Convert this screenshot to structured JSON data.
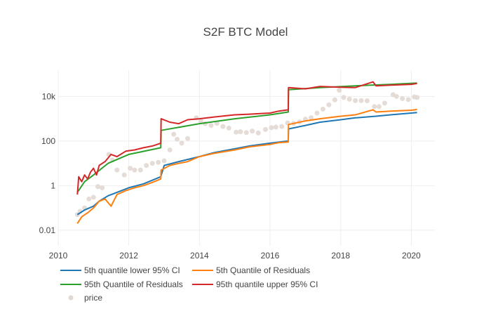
{
  "chart_data": {
    "type": "line",
    "title": "S2F BTC Model",
    "xlabel": "",
    "ylabel": "",
    "x_scale": "time",
    "y_scale": "log",
    "xlim": [
      "2010-01-01",
      "2020-09-01"
    ],
    "ylim": [
      0.002,
      150000
    ],
    "x_ticks": [
      {
        "value": "2010-01-01",
        "label": "2010"
      },
      {
        "value": "2012-01-01",
        "label": "2012"
      },
      {
        "value": "2014-01-01",
        "label": "2014"
      },
      {
        "value": "2016-01-01",
        "label": "2016"
      },
      {
        "value": "2018-01-01",
        "label": "2018"
      },
      {
        "value": "2020-01-01",
        "label": "2020"
      }
    ],
    "y_ticks": [
      {
        "value": 0.01,
        "label": "0.01"
      },
      {
        "value": 1,
        "label": "1"
      },
      {
        "value": 100,
        "label": "100"
      },
      {
        "value": 10000,
        "label": "10k"
      }
    ],
    "grid": true,
    "legend_position": "bottom",
    "series": [
      {
        "name": "5th quantile lower 95% CI",
        "color": "#1f77b4",
        "kind": "line",
        "x": [
          "2010-07-18",
          "2010-10-01",
          "2011-01-01",
          "2011-03-01",
          "2011-06-01",
          "2011-09-01",
          "2012-01-01",
          "2012-06-01",
          "2012-11-27",
          "2013-01-01",
          "2013-06-01",
          "2014-01-01",
          "2014-06-01",
          "2015-01-01",
          "2015-06-01",
          "2016-01-01",
          "2016-07-08",
          "2016-07-10",
          "2017-01-01",
          "2017-06-01",
          "2018-01-01",
          "2018-06-01",
          "2019-01-01",
          "2019-06-01",
          "2020-01-01",
          "2020-03-01"
        ],
        "values": [
          0.05,
          0.08,
          0.12,
          0.2,
          0.35,
          0.5,
          0.8,
          1.2,
          2.5,
          8,
          12,
          20,
          30,
          45,
          60,
          80,
          100,
          350,
          500,
          700,
          900,
          1100,
          1300,
          1500,
          1800,
          1900
        ]
      },
      {
        "name": "5th Quantile of Residuals",
        "color": "#ff7f0e",
        "kind": "line",
        "x": [
          "2010-07-18",
          "2010-09-01",
          "2010-11-01",
          "2011-01-01",
          "2011-03-01",
          "2011-05-01",
          "2011-07-01",
          "2011-09-01",
          "2011-12-01",
          "2012-03-01",
          "2012-06-01",
          "2012-09-01",
          "2012-11-27",
          "2012-11-30",
          "2013-03-01",
          "2013-06-01",
          "2013-09-01",
          "2014-01-01",
          "2014-06-01",
          "2015-01-01",
          "2015-06-01",
          "2016-01-01",
          "2016-04-01",
          "2016-07-08",
          "2016-07-10",
          "2017-01-01",
          "2017-06-01",
          "2018-01-01",
          "2018-06-01",
          "2018-12-01",
          "2019-01-01",
          "2019-06-01",
          "2020-01-01",
          "2020-03-01"
        ],
        "values": [
          0.02,
          0.04,
          0.06,
          0.1,
          0.2,
          0.25,
          0.12,
          0.4,
          0.6,
          0.8,
          1.0,
          1.4,
          2.0,
          5,
          8,
          10,
          12,
          20,
          28,
          40,
          55,
          70,
          85,
          90,
          550,
          800,
          1000,
          1300,
          1500,
          2500,
          2000,
          2200,
          2400,
          2600
        ]
      },
      {
        "name": "95th Quantile of Residuals",
        "color": "#2ca02c",
        "kind": "line",
        "x": [
          "2010-07-18",
          "2010-10-01",
          "2011-01-01",
          "2011-06-01",
          "2012-01-01",
          "2012-11-27",
          "2012-11-30",
          "2014-01-01",
          "2015-01-01",
          "2016-01-01",
          "2016-07-08",
          "2016-07-10",
          "2017-06-01",
          "2018-06-01",
          "2019-06-01",
          "2020-03-01"
        ],
        "values": [
          0.5,
          1.5,
          3,
          10,
          25,
          50,
          300,
          600,
          1000,
          1500,
          2000,
          20000,
          25000,
          30000,
          35000,
          40000
        ]
      },
      {
        "name": "95th quantile upper 95% CI",
        "color": "#d62728",
        "kind": "line",
        "x": [
          "2010-07-18",
          "2010-08-01",
          "2010-09-01",
          "2010-10-01",
          "2010-11-01",
          "2010-12-01",
          "2011-01-01",
          "2011-02-01",
          "2011-03-01",
          "2011-05-01",
          "2011-07-01",
          "2011-09-01",
          "2011-12-01",
          "2012-03-01",
          "2012-06-01",
          "2012-09-01",
          "2012-11-27",
          "2012-11-30",
          "2013-03-01",
          "2013-06-01",
          "2013-09-01",
          "2014-01-01",
          "2014-06-01",
          "2015-01-01",
          "2015-06-01",
          "2016-01-01",
          "2016-04-01",
          "2016-07-08",
          "2016-07-10",
          "2017-01-01",
          "2017-06-01",
          "2018-01-01",
          "2018-06-01",
          "2018-12-01",
          "2019-01-01",
          "2019-06-01",
          "2020-01-01",
          "2020-03-01"
        ],
        "values": [
          0.4,
          2.5,
          1.5,
          3,
          2,
          4,
          6,
          3,
          8,
          12,
          25,
          20,
          35,
          40,
          50,
          60,
          80,
          1000,
          700,
          600,
          900,
          1000,
          1200,
          1500,
          1600,
          1800,
          2200,
          2500,
          25000,
          22000,
          28000,
          26000,
          25000,
          45000,
          30000,
          32000,
          35000,
          38000
        ]
      },
      {
        "name": "price",
        "color": "#e2d8d3",
        "kind": "markers",
        "x": [
          "2010-07-18",
          "2010-08-15",
          "2010-10-01",
          "2010-11-15",
          "2011-01-01",
          "2011-02-15",
          "2011-04-01",
          "2011-06-08",
          "2011-07-15",
          "2011-09-01",
          "2011-11-15",
          "2012-01-15",
          "2012-03-01",
          "2012-05-01",
          "2012-07-01",
          "2012-09-01",
          "2012-11-01",
          "2013-01-01",
          "2013-03-01",
          "2013-04-10",
          "2013-05-15",
          "2013-07-01",
          "2013-09-01",
          "2013-11-30",
          "2014-01-15",
          "2014-03-01",
          "2014-05-01",
          "2014-07-01",
          "2014-09-01",
          "2014-11-01",
          "2015-01-15",
          "2015-03-01",
          "2015-05-01",
          "2015-07-01",
          "2015-09-01",
          "2015-11-15",
          "2016-01-15",
          "2016-03-01",
          "2016-05-01",
          "2016-07-01",
          "2016-09-01",
          "2016-11-01",
          "2017-01-01",
          "2017-03-01",
          "2017-05-01",
          "2017-07-01",
          "2017-09-01",
          "2017-11-01",
          "2017-12-17",
          "2018-02-01",
          "2018-04-01",
          "2018-06-01",
          "2018-08-01",
          "2018-10-01",
          "2018-12-15",
          "2019-02-01",
          "2019-04-01",
          "2019-06-26",
          "2019-08-01",
          "2019-10-01",
          "2019-12-01",
          "2020-02-01",
          "2020-03-01"
        ],
        "values": [
          0.05,
          0.07,
          0.1,
          0.25,
          0.3,
          0.9,
          0.8,
          25,
          14,
          5,
          3,
          6,
          5,
          5,
          8,
          10,
          11,
          13,
          40,
          200,
          120,
          80,
          130,
          1100,
          800,
          600,
          500,
          620,
          450,
          380,
          250,
          260,
          240,
          280,
          230,
          330,
          400,
          420,
          450,
          650,
          620,
          720,
          950,
          1100,
          1800,
          2700,
          4200,
          7000,
          19000,
          9000,
          7500,
          6500,
          6500,
          6400,
          3500,
          3500,
          5000,
          12000,
          10000,
          8000,
          7200,
          9500,
          9000
        ]
      }
    ]
  }
}
